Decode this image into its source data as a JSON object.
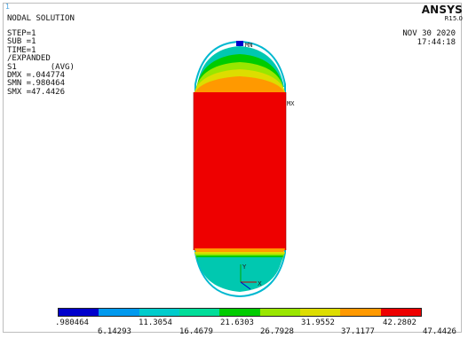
{
  "window_number": "1",
  "plot": {
    "title": "NODAL SOLUTION",
    "info_lines": [
      "STEP=1",
      "SUB =1",
      "TIME=1",
      "/EXPANDED",
      "S1       (AVG)",
      "DMX =.044774",
      "SMN =.980464",
      "SMX =47.4426"
    ],
    "brand": "ANSYS",
    "release": "R15.0",
    "date": "NOV 30 2020",
    "time": "17:44:18",
    "marker_min": "MN",
    "marker_max": "MX",
    "axis_x": "X",
    "axis_y": "Y"
  },
  "legend": {
    "colors": [
      "#0000cc",
      "#0099ee",
      "#00cccc",
      "#00dd99",
      "#00cc00",
      "#99e600",
      "#dddd00",
      "#ff9900",
      "#ee0000"
    ],
    "top_labels": [
      ".980464",
      "11.3054",
      "21.6303",
      "31.9552",
      "42.2802"
    ],
    "bottom_labels": [
      "6.14293",
      "16.4679",
      "26.7928",
      "37.1177",
      "47.4426"
    ]
  }
}
